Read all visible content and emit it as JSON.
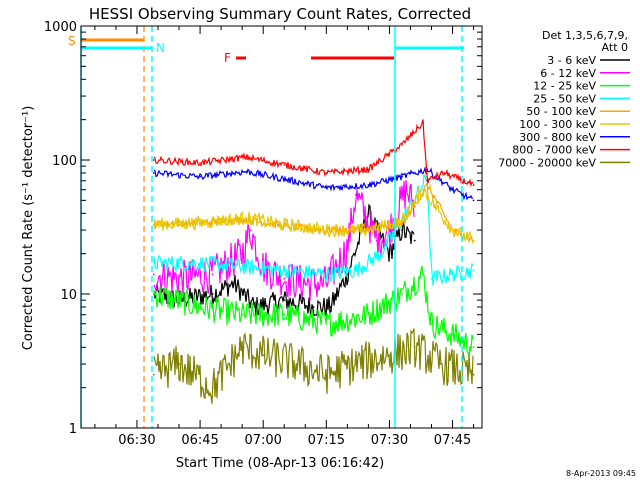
{
  "chart_data": {
    "type": "line",
    "title": "HESSI Observing Summary Count Rates, Corrected",
    "xlabel": "Start Time (08-Apr-13 06:16:42)",
    "ylabel": "Corrected Count Rate (s⁻¹ detector⁻¹)",
    "y_scale": "log",
    "ylim": [
      1,
      1000
    ],
    "xlim": [
      "06:16:42",
      "07:52:00"
    ],
    "x_tick_labels": [
      "06:30",
      "06:45",
      "07:00",
      "07:15",
      "07:30",
      "07:45"
    ],
    "y_tick_labels": [
      "1",
      "10",
      "100",
      "1000"
    ],
    "legend": {
      "placement": "right",
      "header_lines": [
        "Det 1,3,5,6,7,9,",
        "Att 0"
      ]
    },
    "series": [
      {
        "name": "3 - 6 keV",
        "color": "#000000",
        "x": [
          "06:34",
          "06:40",
          "06:48",
          "06:53",
          "06:58",
          "07:05",
          "07:12",
          "07:16",
          "07:20",
          "07:25",
          "07:30",
          "07:33",
          "07:36"
        ],
        "values": [
          10,
          9,
          10,
          12,
          8,
          9,
          8,
          8,
          14,
          40,
          20,
          30,
          25
        ]
      },
      {
        "name": "6 - 12 keV",
        "color": "#ff00ff",
        "x": [
          "06:34",
          "06:40",
          "06:48",
          "06:55",
          "06:57",
          "07:00",
          "07:05",
          "07:10",
          "07:15",
          "07:20",
          "07:22",
          "07:27",
          "07:30",
          "07:34",
          "07:36"
        ],
        "values": [
          14,
          13,
          14,
          20,
          30,
          16,
          13,
          12,
          12,
          22,
          55,
          25,
          30,
          60,
          45
        ]
      },
      {
        "name": "12 - 25 keV",
        "color": "#00ff00",
        "x": [
          "06:34",
          "06:45",
          "06:55",
          "07:05",
          "07:15",
          "07:25",
          "07:33",
          "07:38",
          "07:40",
          "07:45",
          "07:50"
        ],
        "values": [
          10,
          8,
          7,
          7,
          6,
          7,
          10,
          14,
          6,
          5,
          4
        ]
      },
      {
        "name": "25 - 50 keV",
        "color": "#00ffff",
        "x": [
          "06:34",
          "06:45",
          "06:55",
          "07:05",
          "07:15",
          "07:22",
          "07:28",
          "07:34",
          "07:39",
          "07:40",
          "07:45",
          "07:50"
        ],
        "values": [
          17,
          17,
          16,
          15,
          14,
          15,
          20,
          40,
          75,
          13,
          14,
          15
        ]
      },
      {
        "name": "50 - 100 keV",
        "color": "#ffa500",
        "x": [
          "06:34",
          "06:45",
          "06:56",
          "07:05",
          "07:15",
          "07:25",
          "07:33",
          "07:39",
          "07:45",
          "07:50"
        ],
        "values": [
          33,
          34,
          36,
          32,
          30,
          30,
          33,
          65,
          30,
          25
        ]
      },
      {
        "name": "100 - 300 keV",
        "color": "#e5c800",
        "x": [
          "06:34",
          "06:45",
          "06:56",
          "07:05",
          "07:15",
          "07:25",
          "07:33",
          "07:38",
          "07:45",
          "07:50"
        ],
        "values": [
          33,
          34,
          37,
          33,
          30,
          30,
          35,
          60,
          30,
          25
        ]
      },
      {
        "name": "300 - 800 keV",
        "color": "#0000ff",
        "x": [
          "06:34",
          "06:45",
          "06:56",
          "07:05",
          "07:15",
          "07:25",
          "07:33",
          "07:39",
          "07:45",
          "07:50"
        ],
        "values": [
          80,
          75,
          82,
          72,
          62,
          65,
          75,
          85,
          60,
          50
        ]
      },
      {
        "name": "800 - 7000 keV",
        "color": "#ff0000",
        "x": [
          "06:34",
          "06:45",
          "06:56",
          "07:05",
          "07:15",
          "07:25",
          "07:33",
          "07:38",
          "07:39",
          "07:43",
          "07:50"
        ],
        "values": [
          100,
          95,
          105,
          92,
          80,
          85,
          130,
          190,
          70,
          80,
          65
        ]
      },
      {
        "name": "7000 - 20000 keV",
        "color": "#808000",
        "x": [
          "06:34",
          "06:40",
          "06:48",
          "06:55",
          "07:00",
          "07:08",
          "07:15",
          "07:22",
          "07:30",
          "07:36",
          "07:42",
          "07:50"
        ],
        "values": [
          2.5,
          3,
          2,
          4,
          3.5,
          3,
          2.5,
          3,
          3.5,
          4,
          3,
          2.5
        ]
      }
    ],
    "annotations": [
      {
        "label": "S",
        "color": "#ff8c00"
      },
      {
        "label": "N",
        "color": "#00ffff"
      },
      {
        "label": "F",
        "color": "#ff0000"
      }
    ],
    "footer_date": "8-Apr-2013 09:45"
  }
}
